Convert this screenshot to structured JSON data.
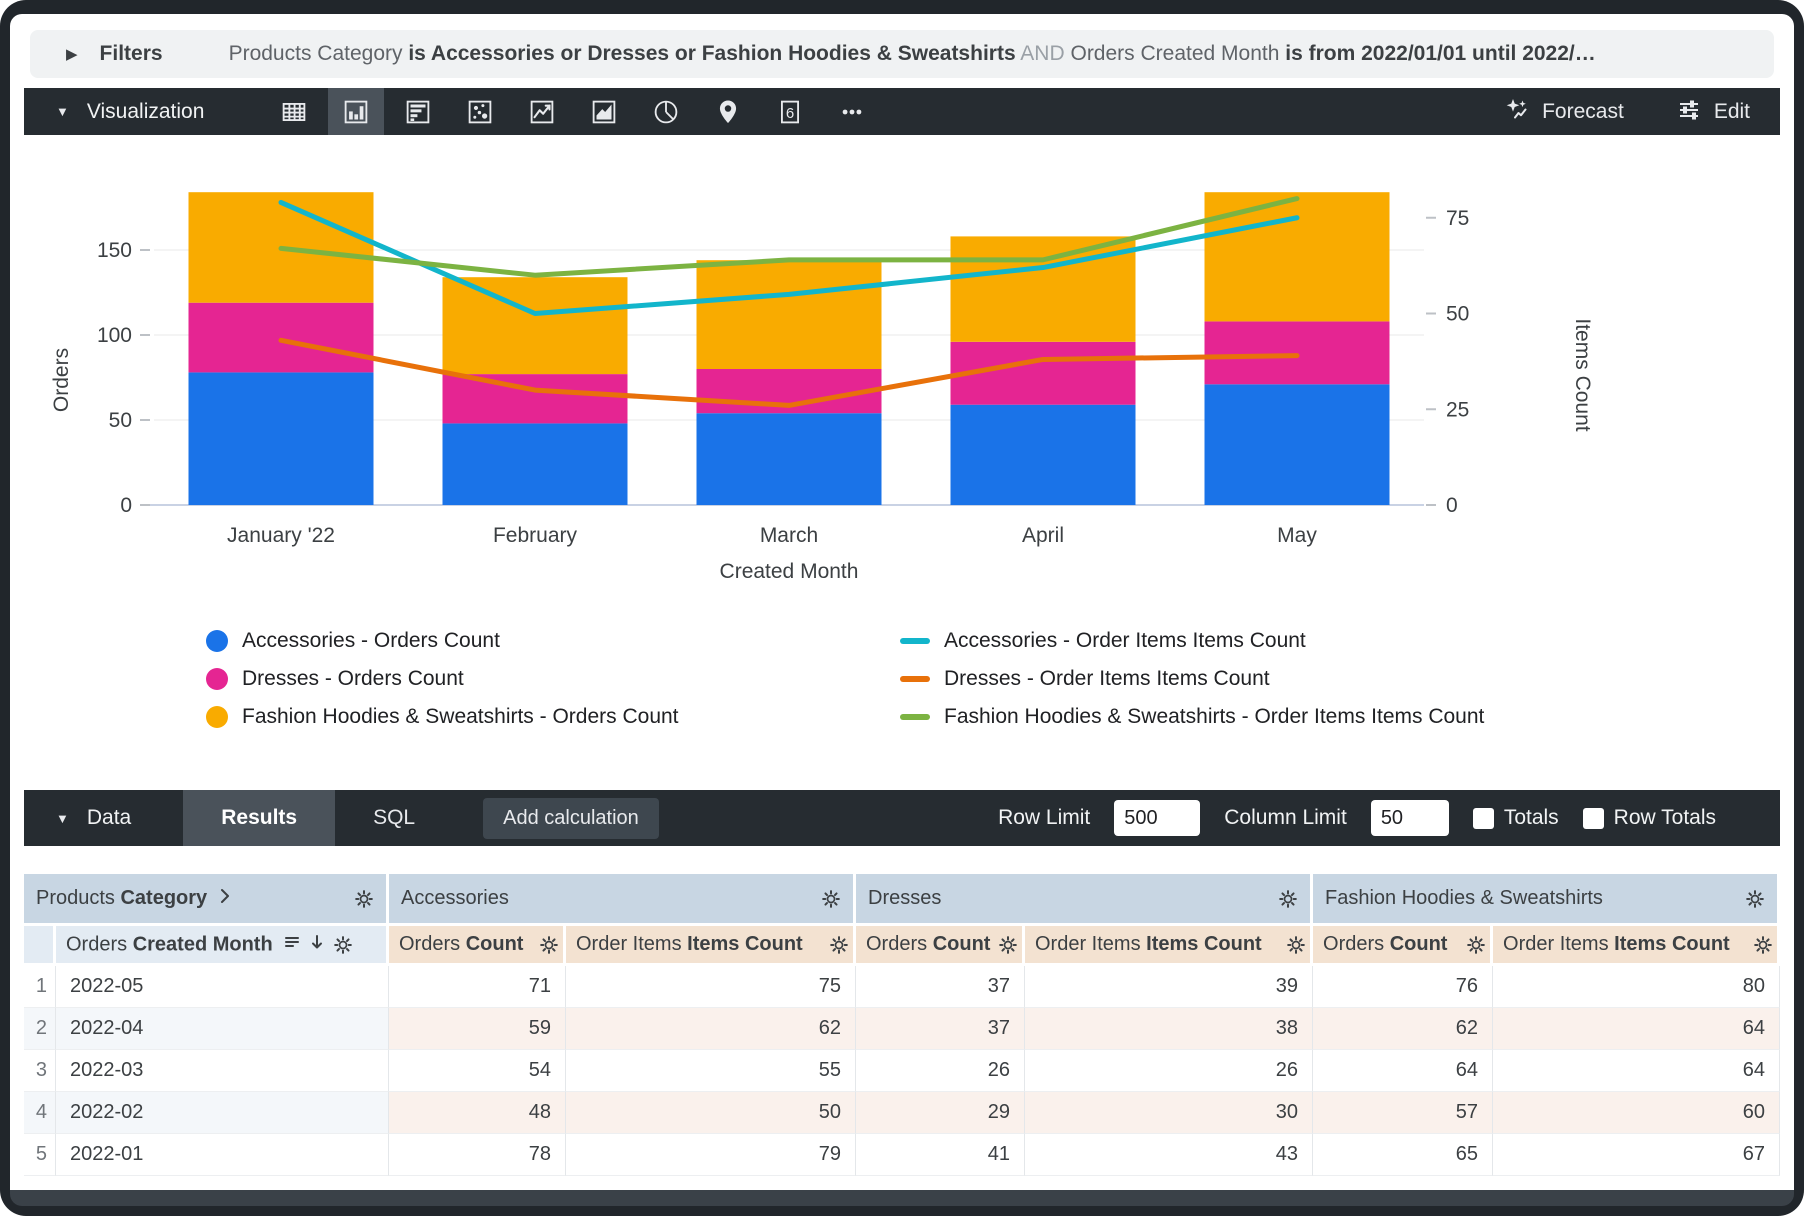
{
  "filters_bar": {
    "label": "Filters",
    "segments": [
      {
        "text": "Products Category",
        "style": "normal"
      },
      {
        "text": " is Accessories or Dresses or Fashion Hoodies & Sweatshirts",
        "style": "bold"
      },
      {
        "text": " AND ",
        "style": "muted"
      },
      {
        "text": "Orders Created Month",
        "style": "normal"
      },
      {
        "text": " is from 2022/01/01 until 2022/…",
        "style": "bold"
      }
    ]
  },
  "viz_toolbar": {
    "label": "Visualization",
    "icons": [
      "table",
      "column-chart",
      "bar-chart",
      "scatter",
      "line-chart",
      "area-chart",
      "pie-chart",
      "map",
      "single-value",
      "more"
    ],
    "selected_icon": "column-chart",
    "single_value_digit": "6",
    "forecast_label": "Forecast",
    "edit_label": "Edit"
  },
  "chart_data": {
    "type": "combo-stacked-bar-line",
    "categories": [
      "January '22",
      "February",
      "March",
      "April",
      "May"
    ],
    "x_axis_label": "Created Month",
    "left_axis": {
      "label": "Orders",
      "ticks": [
        0,
        50,
        100,
        150
      ]
    },
    "right_axis": {
      "label": "Items Count",
      "ticks": [
        0,
        25,
        50,
        75
      ]
    },
    "bar_series": [
      {
        "name": "Accessories - Orders Count",
        "color": "#1A73E8",
        "values": [
          78,
          48,
          54,
          59,
          71
        ]
      },
      {
        "name": "Dresses - Orders Count",
        "color": "#E52592",
        "values": [
          41,
          29,
          26,
          37,
          37
        ]
      },
      {
        "name": "Fashion Hoodies & Sweatshirts - Orders Count",
        "color": "#F9AB00",
        "values": [
          65,
          57,
          64,
          62,
          76
        ]
      }
    ],
    "line_series": [
      {
        "name": "Accessories - Order Items Items Count",
        "color": "#12B5CB",
        "values": [
          79,
          50,
          55,
          62,
          75
        ]
      },
      {
        "name": "Dresses - Order Items Items Count",
        "color": "#E8710A",
        "values": [
          43,
          30,
          26,
          38,
          39
        ]
      },
      {
        "name": "Fashion Hoodies & Sweatshirts - Order Items Items Count",
        "color": "#7CB342",
        "values": [
          67,
          60,
          64,
          64,
          80
        ]
      }
    ],
    "grid": true,
    "legend_position": "bottom"
  },
  "data_bar": {
    "label": "Data",
    "tabs": [
      {
        "label": "Results",
        "selected": true
      },
      {
        "label": "SQL",
        "selected": false
      }
    ],
    "add_calculation_label": "Add calculation",
    "row_limit": {
      "label": "Row Limit",
      "value": "500"
    },
    "column_limit": {
      "label": "Column Limit",
      "value": "50"
    },
    "totals": {
      "label": "Totals",
      "checked": false
    },
    "row_totals": {
      "label": "Row Totals",
      "checked": false
    }
  },
  "table": {
    "dimension_group_header": {
      "prefix": "Products",
      "bold": "Category"
    },
    "measure_groups": [
      "Accessories",
      "Dresses",
      "Fashion Hoodies & Sweatshirts"
    ],
    "dimension_header": {
      "prefix": "Orders",
      "bold": "Created Month"
    },
    "measure_headers": [
      {
        "prefix": "Orders",
        "bold": "Count"
      },
      {
        "prefix": "Order Items",
        "bold": "Items Count"
      }
    ],
    "rows": [
      {
        "num": "1",
        "month": "2022-05",
        "values": [
          71,
          75,
          37,
          39,
          76,
          80
        ]
      },
      {
        "num": "2",
        "month": "2022-04",
        "values": [
          59,
          62,
          37,
          38,
          62,
          64
        ]
      },
      {
        "num": "3",
        "month": "2022-03",
        "values": [
          54,
          55,
          26,
          26,
          64,
          64
        ]
      },
      {
        "num": "4",
        "month": "2022-02",
        "values": [
          48,
          50,
          29,
          30,
          57,
          60
        ]
      },
      {
        "num": "5",
        "month": "2022-01",
        "values": [
          78,
          79,
          41,
          43,
          65,
          67
        ]
      }
    ]
  },
  "colors": {
    "toolbar_bg": "#262C31",
    "selected_tab_bg": "#4A525A",
    "header_group_bg": "#C8D6E3",
    "header_dim_bg": "#E3EBF3",
    "header_measure_bg": "#F3E2D1",
    "stripe_dim_bg": "#F4F7FA",
    "stripe_measure_bg": "#FAF1EC",
    "accent_blue": "#1A73E8",
    "accent_pink": "#E52592",
    "accent_amber": "#F9AB00",
    "accent_cyan": "#12B5CB",
    "accent_orange": "#E8710A",
    "accent_green": "#7CB342"
  }
}
